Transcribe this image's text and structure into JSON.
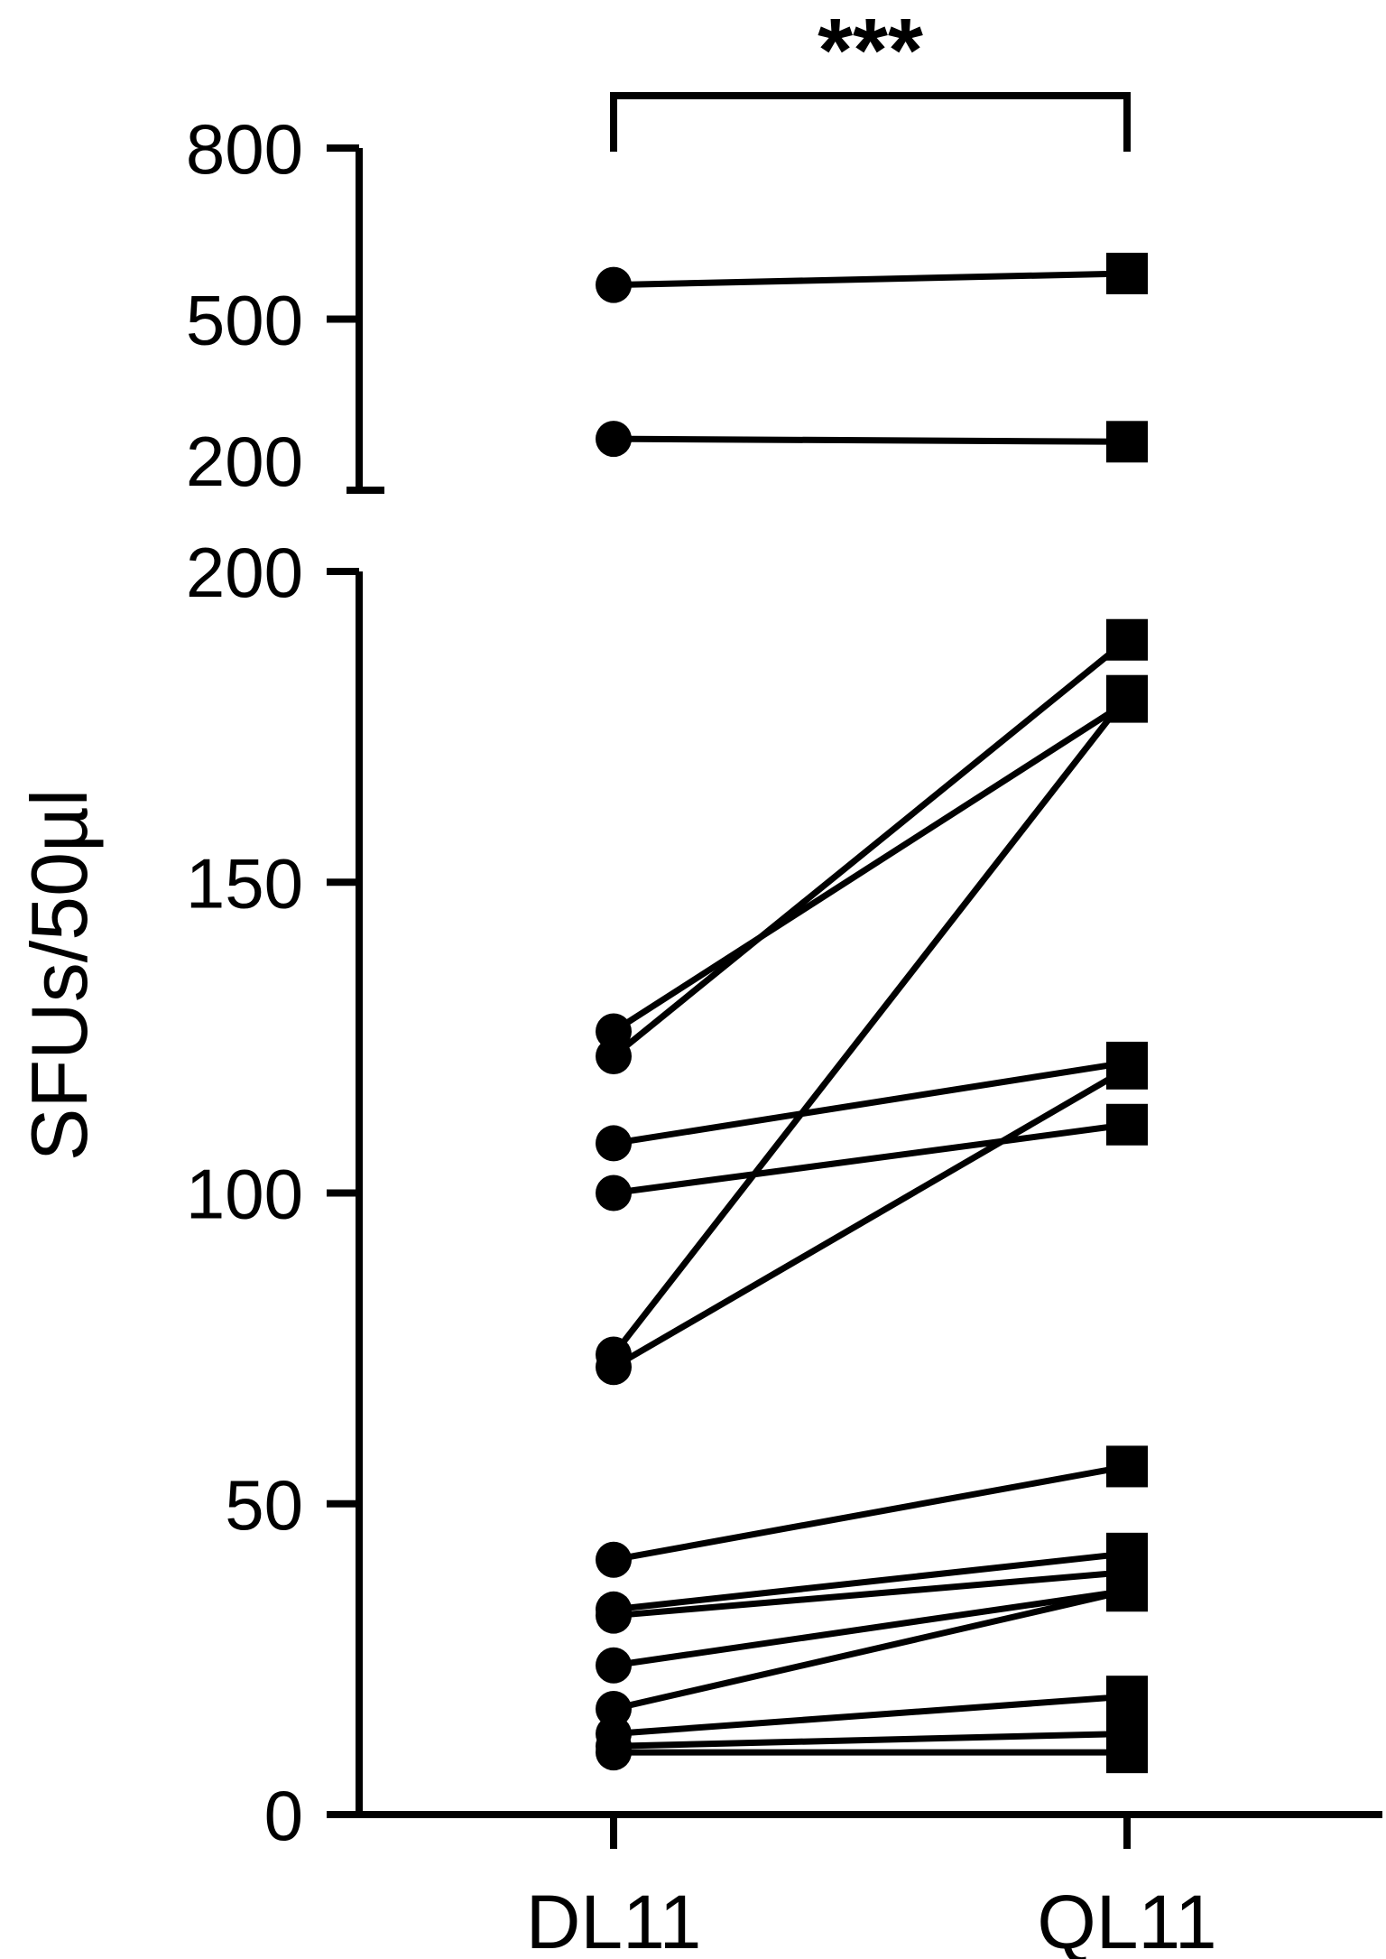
{
  "chart_data": {
    "type": "scatter",
    "subtype": "paired-dot-plot",
    "ylabel": "SFUs/50µl",
    "xlabel": "",
    "categories": [
      "DL11",
      "QL11"
    ],
    "y_axis_break": true,
    "segments": [
      {
        "range": [
          0,
          200
        ],
        "ticks": [
          0,
          50,
          100,
          150,
          200
        ]
      },
      {
        "range": [
          200,
          800
        ],
        "ticks": [
          200,
          500,
          800
        ]
      }
    ],
    "ytick_labels_lower": [
      "0",
      "50",
      "100",
      "150",
      "200"
    ],
    "ytick_labels_upper": [
      "200",
      "500",
      "800"
    ],
    "markers": {
      "DL11": "circle",
      "QL11": "square"
    },
    "significance": "***",
    "pairs": [
      {
        "DL11": 560,
        "QL11": 580
      },
      {
        "DL11": 290,
        "QL11": 285
      },
      {
        "DL11": 126,
        "QL11": 179
      },
      {
        "DL11": 122,
        "QL11": 189
      },
      {
        "DL11": 108,
        "QL11": 121
      },
      {
        "DL11": 100,
        "QL11": 111
      },
      {
        "DL11": 74,
        "QL11": 180
      },
      {
        "DL11": 72,
        "QL11": 120
      },
      {
        "DL11": 41,
        "QL11": 56
      },
      {
        "DL11": 33,
        "QL11": 42
      },
      {
        "DL11": 32,
        "QL11": 39
      },
      {
        "DL11": 24,
        "QL11": 36
      },
      {
        "DL11": 17,
        "QL11": 36
      },
      {
        "DL11": 13,
        "QL11": 19
      },
      {
        "DL11": 11,
        "QL11": 13
      },
      {
        "DL11": 10,
        "QL11": 10
      }
    ]
  }
}
